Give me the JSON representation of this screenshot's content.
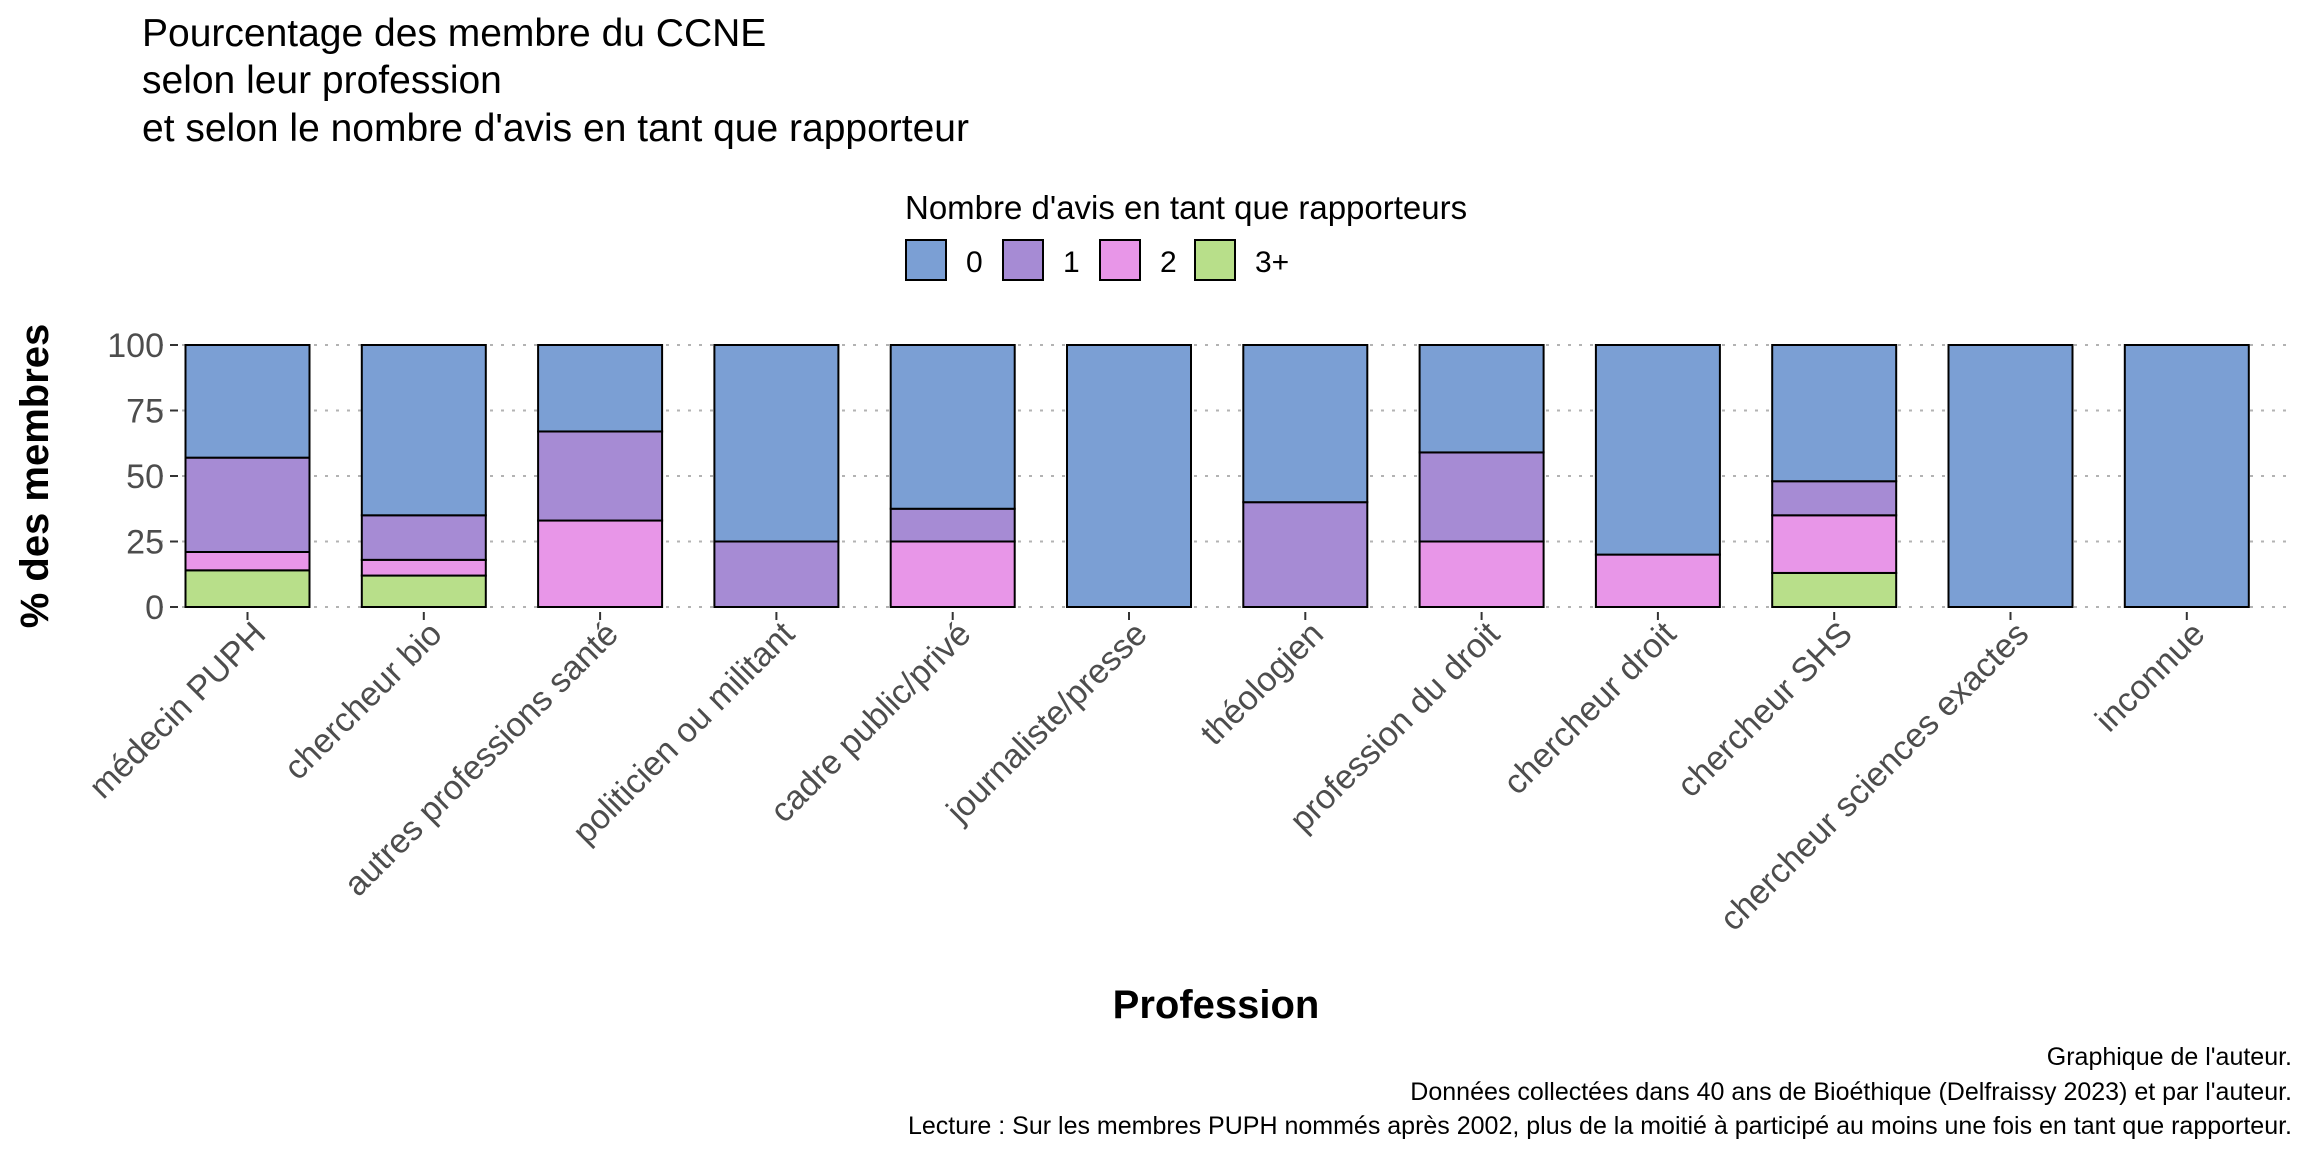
{
  "chart_data": {
    "type": "bar",
    "stacked": true,
    "title_lines": [
      "Pourcentage des membre du CCNE",
      "selon leur profession",
      "et selon le nombre d'avis en tant que rapporteur"
    ],
    "xlabel": "Profession",
    "ylabel": "% des membres",
    "ylim": [
      0,
      100
    ],
    "yticks": [
      0,
      25,
      50,
      75,
      100
    ],
    "grid": true,
    "legend": {
      "title": "Nombre d'avis en tant que rapporteurs",
      "position": "top"
    },
    "categories": [
      "médecin PUPH",
      "chercheur bio",
      "autres professions santé",
      "politicien ou militant",
      "cadre public/privé",
      "journaliste/presse",
      "théologien",
      "profession du droit",
      "chercheur droit",
      "chercheur SHS",
      "chercheur sciences exactes",
      "inconnue"
    ],
    "series": [
      {
        "name": "0",
        "color": "#7b9fd4",
        "values": [
          43,
          65,
          33,
          75,
          62.5,
          100,
          60,
          41,
          80,
          52,
          100,
          100
        ]
      },
      {
        "name": "1",
        "color": "#a68bd4",
        "values": [
          36,
          17,
          34,
          25,
          12.5,
          0,
          40,
          34,
          0,
          13,
          0,
          0
        ]
      },
      {
        "name": "2",
        "color": "#e896e8",
        "values": [
          7,
          6,
          33,
          0,
          25,
          0,
          0,
          25,
          20,
          22,
          0,
          0
        ]
      },
      {
        "name": "3+",
        "color": "#b8df8a",
        "values": [
          14,
          12,
          0,
          0,
          0,
          0,
          0,
          0,
          0,
          13,
          0,
          0
        ]
      }
    ],
    "caption_lines": [
      "Graphique de l'auteur.",
      "Données collectées dans 40 ans de Bioéthique (Delfraissy 2023) et par l'auteur.",
      "Lecture : Sur les membres PUPH nommés après 2002, plus de la moitié à participé au moins une fois en tant que rapporteur."
    ]
  }
}
